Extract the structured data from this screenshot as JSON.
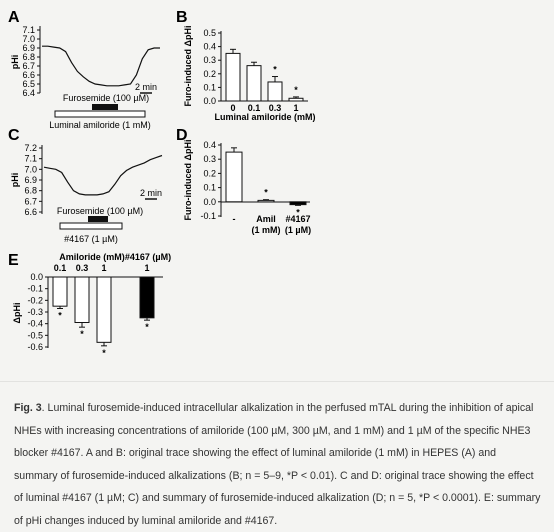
{
  "panels": {
    "A": {
      "letter": "A",
      "ylabel": "pHi",
      "yticks": [
        "7.1",
        "7.0",
        "6.9",
        "6.8",
        "6.7",
        "6.6",
        "6.5",
        "6.4"
      ],
      "scale_label": "2 min",
      "drug_bar_label": "Furosemide (100 µM)",
      "lumen_bar_label": "Luminal amiloride (1 mM)"
    },
    "B": {
      "letter": "B",
      "ylabel": "Furo-induced ΔpHi",
      "xlabel": "Luminal  amiloride (mM)",
      "yticks": [
        "0.5",
        "0.4",
        "0.3",
        "0.2",
        "0.1",
        "0.0"
      ]
    },
    "C": {
      "letter": "C",
      "ylabel": "pHi",
      "yticks": [
        "7.2",
        "7.1",
        "7.0",
        "6.9",
        "6.8",
        "6.7",
        "6.6"
      ],
      "scale_label": "2 min",
      "drug_bar_label": "Furosemide (100 µM)",
      "lumen_bar_label": "#4167 (1 µM)"
    },
    "D": {
      "letter": "D",
      "ylabel": "Furo-induced ΔpHi",
      "yticks": [
        "0.4",
        "0.3",
        "0.2",
        "0.1",
        "0.0",
        "-0.1"
      ]
    },
    "E": {
      "letter": "E",
      "ylabel": "ΔpHi",
      "yticks": [
        "0.0",
        "-0.1",
        "-0.2",
        "-0.3",
        "-0.4",
        "-0.5",
        "-0.6"
      ],
      "top_label_1": "Amiloride (mM)",
      "top_label_2": "#4167 (µM)"
    }
  },
  "chart_data": [
    {
      "panel": "B",
      "type": "bar",
      "categories": [
        "0",
        "0.1",
        "0.3",
        "1"
      ],
      "values": [
        0.35,
        0.26,
        0.14,
        0.02
      ],
      "errors": [
        0.03,
        0.025,
        0.04,
        0.01
      ],
      "significance": [
        "",
        "",
        "*",
        "*"
      ],
      "xlabel": "Luminal  amiloride (mM)",
      "ylabel": "Furo-induced ΔpHi",
      "ylim": [
        0,
        0.5
      ]
    },
    {
      "panel": "D",
      "type": "bar",
      "categories": [
        "-",
        "Amil\n(1 mM)",
        "#4167\n(1 µM)"
      ],
      "category_lines": [
        [
          "-",
          ""
        ],
        [
          "Amil",
          "(1 mM)"
        ],
        [
          "#4167",
          "(1 µM)"
        ]
      ],
      "values": [
        0.35,
        0.01,
        -0.02
      ],
      "errors": [
        0.03,
        0.005,
        0.005
      ],
      "fills": [
        "#ffffff",
        "#ffffff",
        "#000000"
      ],
      "significance": [
        "",
        "*",
        "*"
      ],
      "ylabel": "Furo-induced ΔpHi",
      "ylim": [
        -0.1,
        0.4
      ]
    },
    {
      "panel": "E",
      "type": "bar",
      "categories": [
        "0.1",
        "0.3",
        "1",
        "1"
      ],
      "values": [
        -0.25,
        -0.39,
        -0.56,
        -0.35
      ],
      "errors": [
        0.02,
        0.04,
        0.03,
        0.02
      ],
      "fills": [
        "#ffffff",
        "#ffffff",
        "#ffffff",
        "#000000"
      ],
      "significance": [
        "*",
        "*",
        "*",
        "*"
      ],
      "ylabel": "ΔpHi",
      "ylim": [
        -0.6,
        0.0
      ]
    },
    {
      "panel": "A",
      "type": "line",
      "ylabel": "pHi",
      "ylim": [
        6.4,
        7.1
      ],
      "x": [
        0,
        1,
        2,
        3,
        4,
        5,
        6,
        7,
        8,
        9,
        10,
        11,
        12,
        13,
        14,
        15,
        16,
        17,
        18,
        19,
        20
      ],
      "y": [
        6.92,
        6.92,
        6.91,
        6.9,
        6.86,
        6.74,
        6.64,
        6.58,
        6.53,
        6.5,
        6.49,
        6.48,
        6.48,
        6.48,
        6.49,
        6.5,
        6.6,
        6.78,
        6.88,
        6.9,
        6.9
      ]
    },
    {
      "panel": "C",
      "type": "line",
      "ylabel": "pHi",
      "ylim": [
        6.6,
        7.2
      ],
      "x": [
        0,
        1,
        2,
        3,
        4,
        5,
        6,
        7,
        8,
        9,
        10,
        11,
        12,
        13,
        14,
        15,
        16,
        17,
        18,
        19,
        20
      ],
      "y": [
        7.02,
        7.01,
        7.0,
        6.97,
        6.88,
        6.8,
        6.77,
        6.76,
        6.76,
        6.76,
        6.77,
        6.79,
        6.86,
        6.94,
        6.99,
        7.02,
        7.04,
        7.06,
        7.09,
        7.11,
        7.13
      ]
    }
  ],
  "caption": {
    "fig_label": "Fig. 3",
    "text": ". Luminal furosemide-induced intracellular alkalization in the perfused mTAL during the inhibition of apical NHEs with increasing concentrations of amiloride (100 µM, 300 µM, and 1 mM) and 1 µM of the specific NHE3 blocker #4167. A and B: original trace showing the effect of luminal amiloride (1 mM) in HEPES (A) and summary of furosemide-induced alkalizations (B; n = 5–9, *P < 0.01). C and D: original trace showing the effect of luminal #4167 (1 µM; C) and summary of furosemide-induced alkalization (D; n = 5, *P < 0.0001). E: summary of pHi changes induced by luminal amiloride and #4167."
  }
}
